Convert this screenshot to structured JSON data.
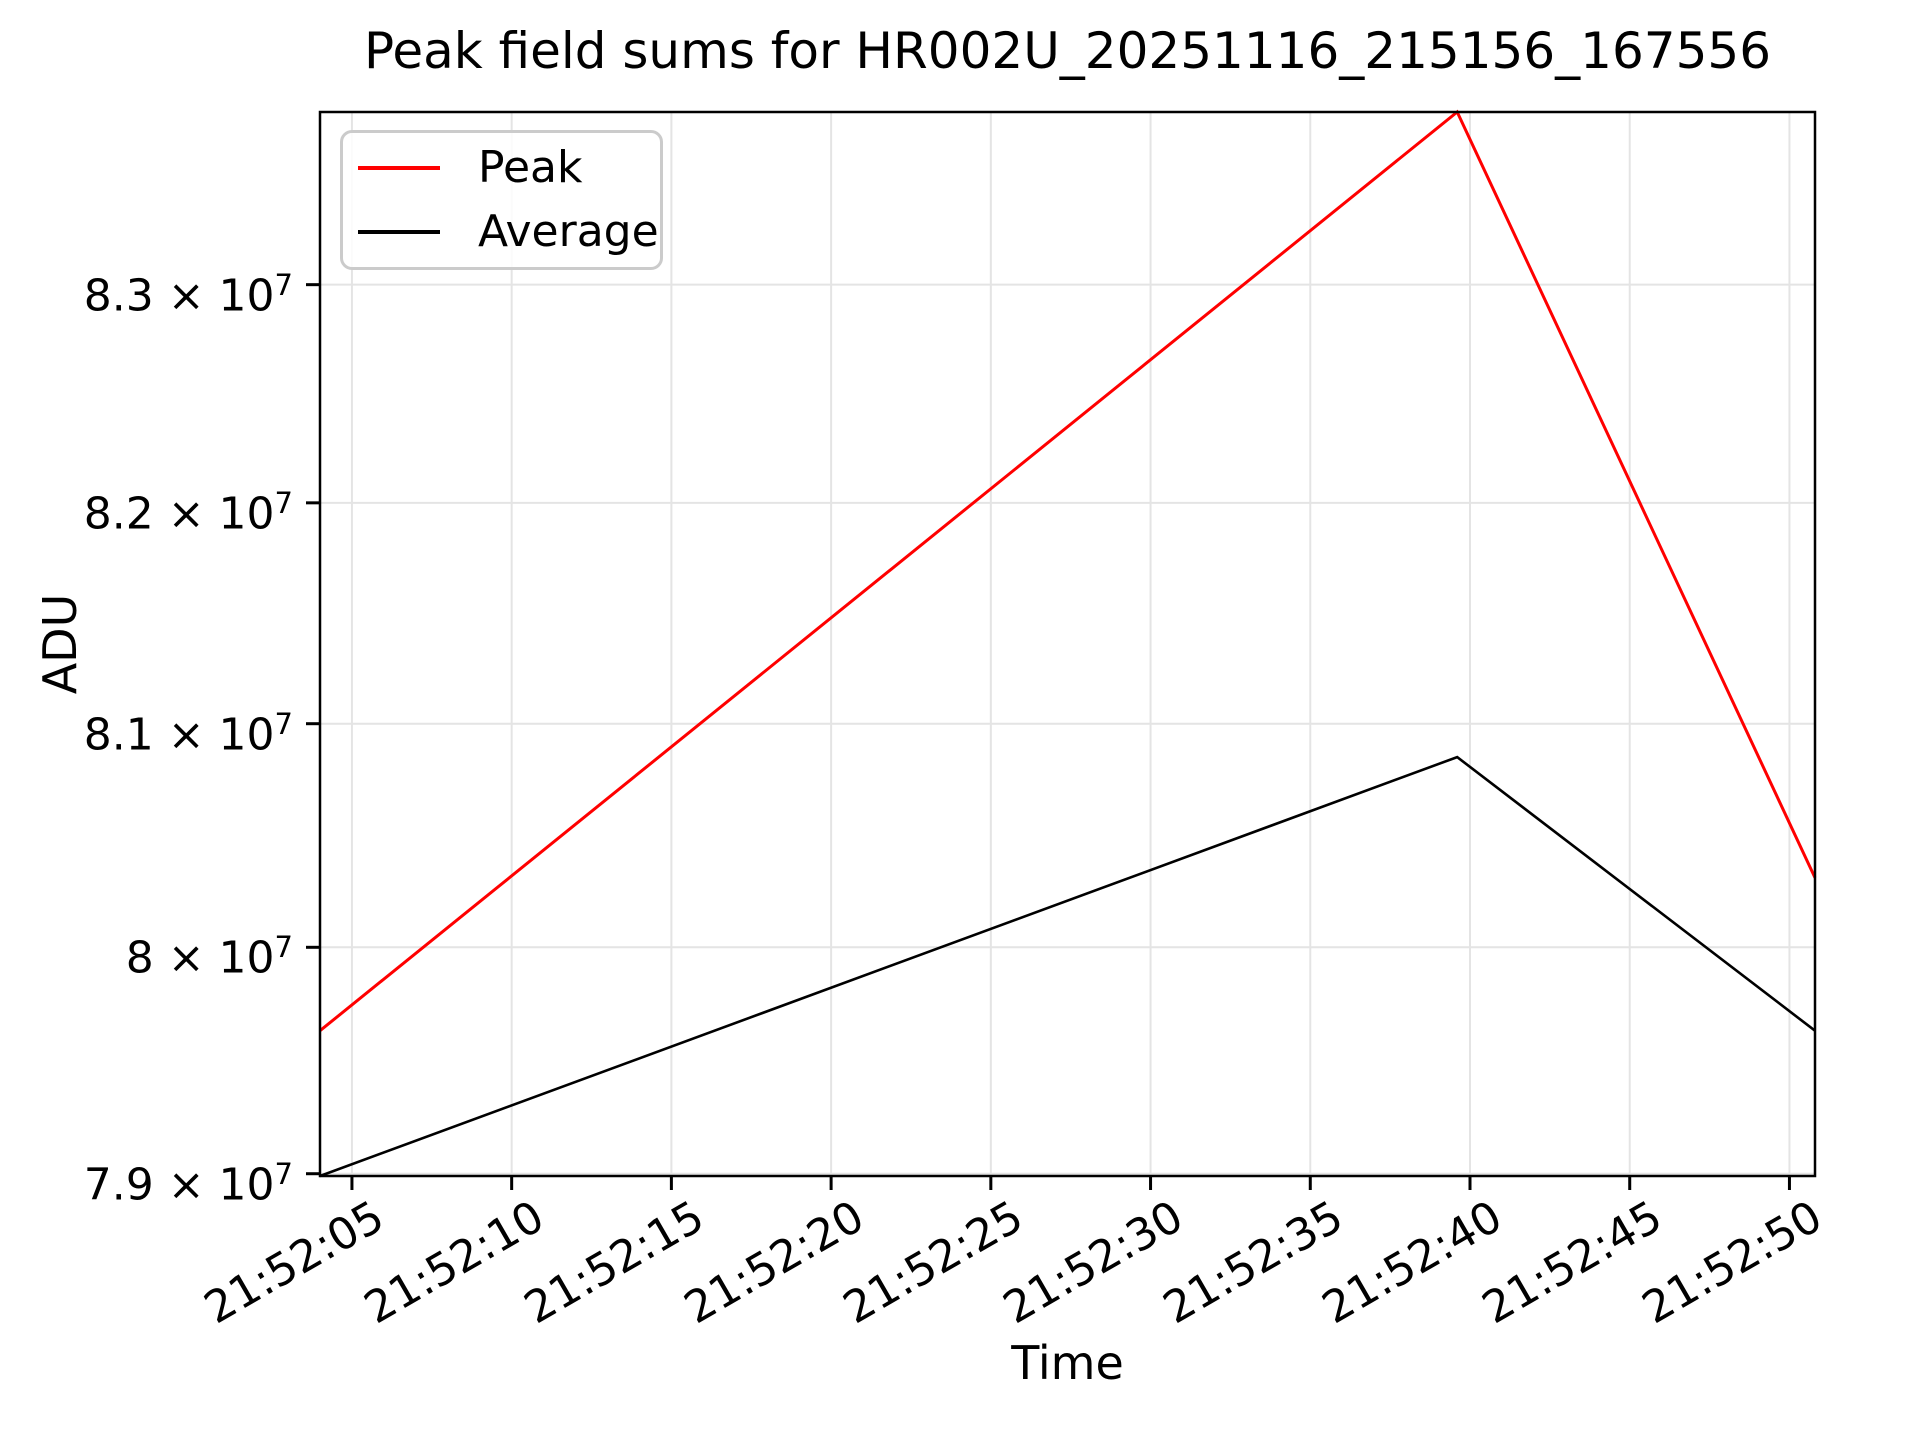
{
  "chart_data": {
    "type": "line",
    "title": "Peak field sums for HR002U_20251116_215156_167556",
    "xlabel": "Time",
    "ylabel": "ADU",
    "yscale": "log",
    "grid": true,
    "background": "#ffffff",
    "grid_color": "#e4e4e4",
    "xlim_seconds_after_21_52_00": [
      4.0,
      50.8
    ],
    "ylim": [
      78990000,
      83800000
    ],
    "xticks": [
      {
        "t": 5,
        "label": "21:52:05"
      },
      {
        "t": 10,
        "label": "21:52:10"
      },
      {
        "t": 15,
        "label": "21:52:15"
      },
      {
        "t": 20,
        "label": "21:52:20"
      },
      {
        "t": 25,
        "label": "21:52:25"
      },
      {
        "t": 30,
        "label": "21:52:30"
      },
      {
        "t": 35,
        "label": "21:52:35"
      },
      {
        "t": 40,
        "label": "21:52:40"
      },
      {
        "t": 45,
        "label": "21:52:45"
      },
      {
        "t": 50,
        "label": "21:52:50"
      }
    ],
    "yticks": [
      {
        "value": 79000000,
        "mantissa": "7.9 × 10",
        "exp": "7"
      },
      {
        "value": 80000000,
        "mantissa": "8 × 10",
        "exp": "7"
      },
      {
        "value": 81000000,
        "mantissa": "8.1 × 10",
        "exp": "7"
      },
      {
        "value": 82000000,
        "mantissa": "8.2 × 10",
        "exp": "7"
      },
      {
        "value": 83000000,
        "mantissa": "8.3 × 10",
        "exp": "7"
      }
    ],
    "legend": {
      "position": "upper left"
    },
    "series": [
      {
        "name": "Peak",
        "color": "#ff0000",
        "x_seconds": [
          4.0,
          39.6,
          50.8
        ],
        "values": [
          79630000,
          83800000,
          80310000
        ]
      },
      {
        "name": "Average",
        "color": "#000000",
        "x_seconds": [
          4.0,
          39.6,
          50.8
        ],
        "values": [
          78990000,
          80850000,
          79630000
        ]
      }
    ]
  }
}
